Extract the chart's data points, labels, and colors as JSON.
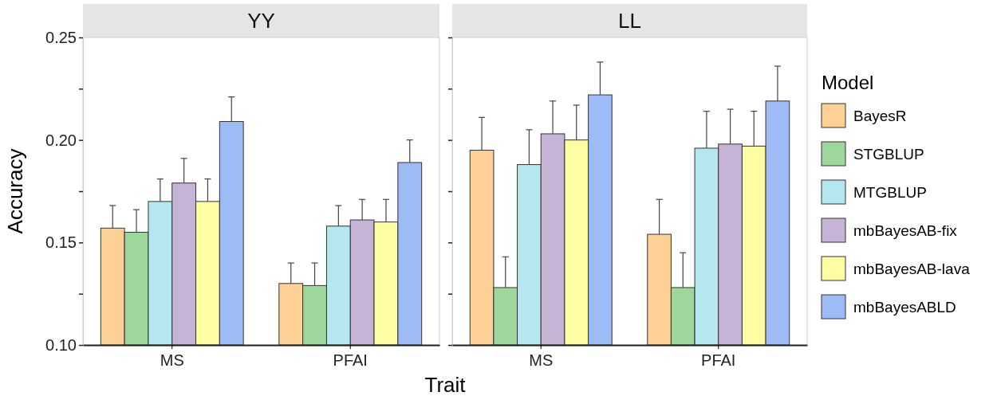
{
  "chart_data": [
    {
      "type": "bar",
      "title": "YY",
      "xlabel": "Trait",
      "ylabel": "Accuracy",
      "categories": [
        "MS",
        "PFAI"
      ],
      "ylim": [
        0.1,
        0.25
      ],
      "yticks": [
        {
          "value": 0.1,
          "label": "0.10"
        },
        {
          "value": 0.125,
          "label": null
        },
        {
          "value": 0.15,
          "label": "0.15"
        },
        {
          "value": 0.175,
          "label": null
        },
        {
          "value": 0.2,
          "label": "0.20"
        },
        {
          "value": 0.225,
          "label": null
        },
        {
          "value": 0.25,
          "label": "0.25"
        }
      ],
      "legend": false,
      "series": [
        {
          "color": "#fdd095",
          "values": [
            0.157,
            0.13
          ],
          "errors": [
            [
              0.157,
              0.168
            ],
            [
              0.13,
              0.14
            ]
          ]
        },
        {
          "color": "#9ed79c",
          "values": [
            0.155,
            0.129
          ],
          "errors": [
            [
              0.155,
              0.166
            ],
            [
              0.129,
              0.14
            ]
          ]
        },
        {
          "color": "#b4e7ee",
          "values": [
            0.17,
            0.158
          ],
          "errors": [
            [
              0.17,
              0.181
            ],
            [
              0.158,
              0.168
            ]
          ]
        },
        {
          "color": "#c6b4d7",
          "values": [
            0.179,
            0.161
          ],
          "errors": [
            [
              0.179,
              0.191
            ],
            [
              0.161,
              0.171
            ]
          ]
        },
        {
          "color": "#fefda3",
          "values": [
            0.17,
            0.16
          ],
          "errors": [
            [
              0.17,
              0.181
            ],
            [
              0.16,
              0.171
            ]
          ]
        },
        {
          "color": "#9dbcf6",
          "values": [
            0.209,
            0.189
          ],
          "errors": [
            [
              0.209,
              0.221
            ],
            [
              0.189,
              0.2
            ]
          ]
        }
      ]
    },
    {
      "type": "bar",
      "title": "LL",
      "legend_title": "Model",
      "categories": [
        "MS",
        "PFAI"
      ],
      "ylim": [
        0.1,
        0.25
      ],
      "yticks": [
        {
          "value": 0.1,
          "label": null
        },
        {
          "value": 0.125,
          "label": null
        },
        {
          "value": 0.15,
          "label": null
        },
        {
          "value": 0.175,
          "label": null
        },
        {
          "value": 0.2,
          "label": null
        },
        {
          "value": 0.225,
          "label": null
        },
        {
          "value": 0.25,
          "label": null
        }
      ],
      "tick_labels": "x",
      "legend": "right",
      "series": [
        {
          "name": "BayesR",
          "color": "#fdd095",
          "values": [
            0.195,
            0.154
          ],
          "errors": [
            [
              0.195,
              0.211
            ],
            [
              0.154,
              0.171
            ]
          ]
        },
        {
          "name": "STGBLUP",
          "color": "#9ed79c",
          "values": [
            0.128,
            0.128
          ],
          "errors": [
            [
              0.128,
              0.143
            ],
            [
              0.128,
              0.145
            ]
          ]
        },
        {
          "name": "MTGBLUP",
          "color": "#b4e7ee",
          "values": [
            0.188,
            0.196
          ],
          "errors": [
            [
              0.188,
              0.205
            ],
            [
              0.196,
              0.214
            ]
          ]
        },
        {
          "name": "mbBayesAB-fix",
          "color": "#c6b4d7",
          "values": [
            0.203,
            0.198
          ],
          "errors": [
            [
              0.203,
              0.219
            ],
            [
              0.198,
              0.215
            ]
          ]
        },
        {
          "name": "mbBayesAB-lava",
          "color": "#fefda3",
          "values": [
            0.2,
            0.197
          ],
          "errors": [
            [
              0.2,
              0.217
            ],
            [
              0.197,
              0.214
            ]
          ]
        },
        {
          "name": "mbBayesABLD",
          "color": "#9dbcf6",
          "values": [
            0.222,
            0.219
          ],
          "errors": [
            [
              0.222,
              0.238
            ],
            [
              0.219,
              0.236
            ]
          ]
        }
      ]
    }
  ]
}
